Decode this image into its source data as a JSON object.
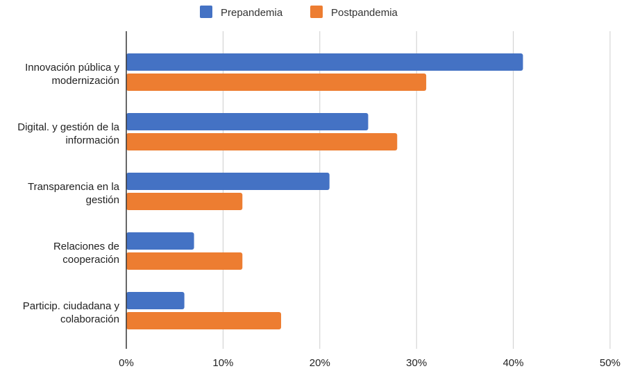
{
  "chart_data": {
    "type": "bar",
    "orientation": "horizontal",
    "categories": [
      [
        "Innovación pública y",
        "modernización"
      ],
      [
        "Digital. y gestión de la",
        "información"
      ],
      [
        "Transparencia en la",
        "gestión"
      ],
      [
        "Relaciones de",
        "cooperación"
      ],
      [
        "Particip. ciudadana y",
        "colaboración"
      ]
    ],
    "series": [
      {
        "name": "Prepandemia",
        "color": "#4472C4",
        "values": [
          41,
          25,
          21,
          7,
          6
        ]
      },
      {
        "name": "Postpandemia",
        "color": "#ED7D31",
        "values": [
          31,
          28,
          12,
          12,
          16
        ]
      }
    ],
    "xlim": [
      0,
      50
    ],
    "xticks": [
      "0%",
      "10%",
      "20%",
      "30%",
      "40%",
      "50%"
    ],
    "grid": true,
    "legend_position": "top-center",
    "title": "",
    "xlabel": "",
    "ylabel": ""
  }
}
